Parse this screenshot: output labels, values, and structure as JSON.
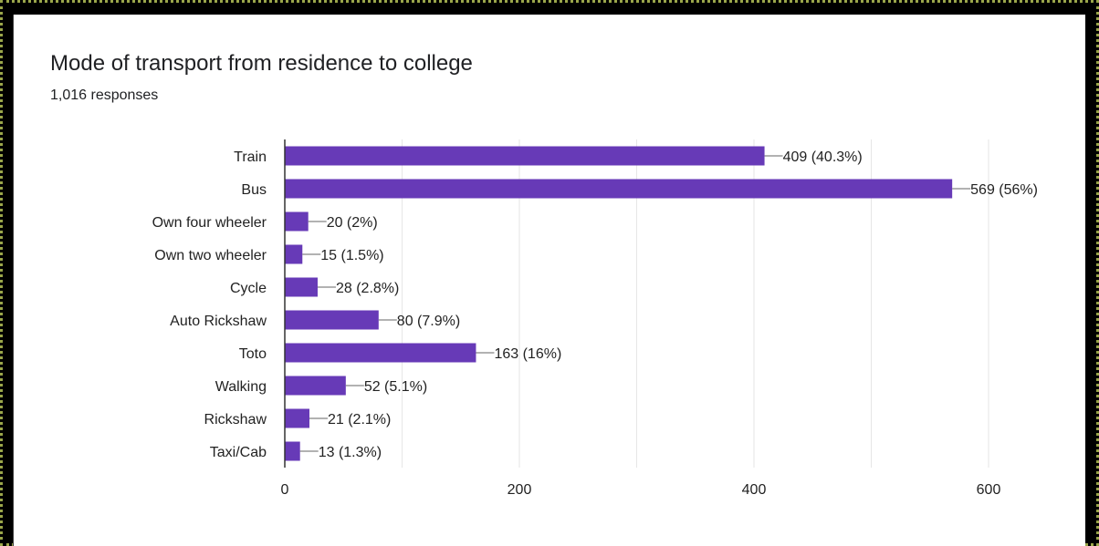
{
  "colors": {
    "bar": "#673ab7",
    "grid": "#e6e6e6",
    "axis": "#333333",
    "text": "#222222",
    "background": "#ffffff"
  },
  "chart_data": {
    "type": "bar",
    "orientation": "horizontal",
    "title": "Mode of transport from residence to college",
    "subtitle": "1,016 responses",
    "categories": [
      "Train",
      "Bus",
      "Own four wheeler",
      "Own two wheeler",
      "Cycle",
      "Auto Rickshaw",
      "Toto",
      "Walking",
      "Rickshaw",
      "Taxi/Cab"
    ],
    "values": [
      409,
      569,
      20,
      15,
      28,
      80,
      163,
      52,
      21,
      13
    ],
    "data_labels": [
      "409 (40.3%)",
      "569 (56%)",
      "20 (2%)",
      "15 (1.5%)",
      "28 (2.8%)",
      "80 (7.9%)",
      "163 (16%)",
      "52 (5.1%)",
      "21 (2.1%)",
      "13 (1.3%)"
    ],
    "xlim": [
      0,
      600
    ],
    "xticks": [
      0,
      200,
      400,
      600
    ],
    "grid": true,
    "legend": "none"
  }
}
